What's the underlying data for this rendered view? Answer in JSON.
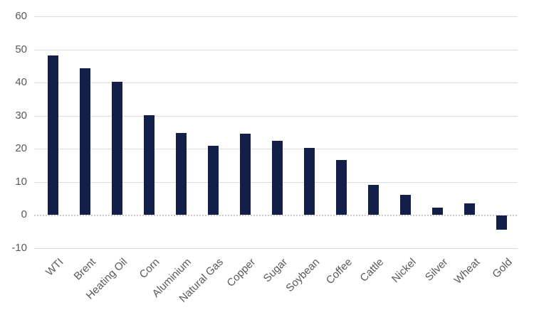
{
  "chart_data": {
    "type": "bar",
    "title": "",
    "xlabel": "",
    "ylabel": "",
    "categories": [
      "WTI",
      "Brent",
      "Heating Oil",
      "Corn",
      "Aluminium",
      "Natural Gas",
      "Copper",
      "Sugar",
      "Soybean",
      "Coffee",
      "Cattle",
      "Nickel",
      "Silver",
      "Wheat",
      "Gold"
    ],
    "values": [
      48.1,
      44.3,
      40.3,
      30.1,
      24.7,
      21.0,
      24.5,
      22.3,
      20.2,
      16.5,
      9.0,
      6.0,
      2.2,
      3.4,
      -4.3
    ],
    "ylim": [
      -10,
      60
    ],
    "yticks": [
      60,
      50,
      40,
      30,
      20,
      10,
      0,
      -10
    ],
    "grid": true,
    "legend": false,
    "zero_line_style": "dotted",
    "colors": {
      "bar": "#131f48",
      "gridline": "#dcdcdc",
      "zero_line": "#cccccc",
      "axis_labels": "#595959",
      "background": "#ffffff"
    }
  }
}
